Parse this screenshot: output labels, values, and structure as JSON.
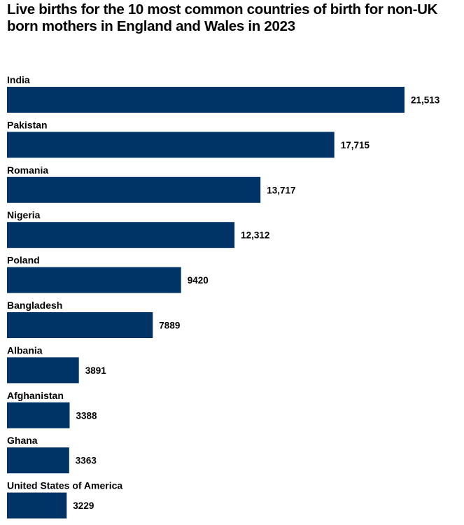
{
  "chart_data": {
    "type": "bar",
    "orientation": "horizontal",
    "title": "Live births for the 10 most common countries of birth for non-UK born mothers in England and Wales in 2023",
    "categories": [
      "India",
      "Pakistan",
      "Romania",
      "Nigeria",
      "Poland",
      "Bangladesh",
      "Albania",
      "Afghanistan",
      "Ghana",
      "United States of America"
    ],
    "values": [
      21513,
      17715,
      13717,
      12312,
      9420,
      7889,
      3891,
      3388,
      3363,
      3229
    ],
    "value_labels": [
      "21,513",
      "17,715",
      "13,717",
      "12,312",
      "9420",
      "7889",
      "3891",
      "3388",
      "3363",
      "3229"
    ],
    "xlim": [
      0,
      21513
    ],
    "grid": false,
    "bar_color": "#003366"
  }
}
